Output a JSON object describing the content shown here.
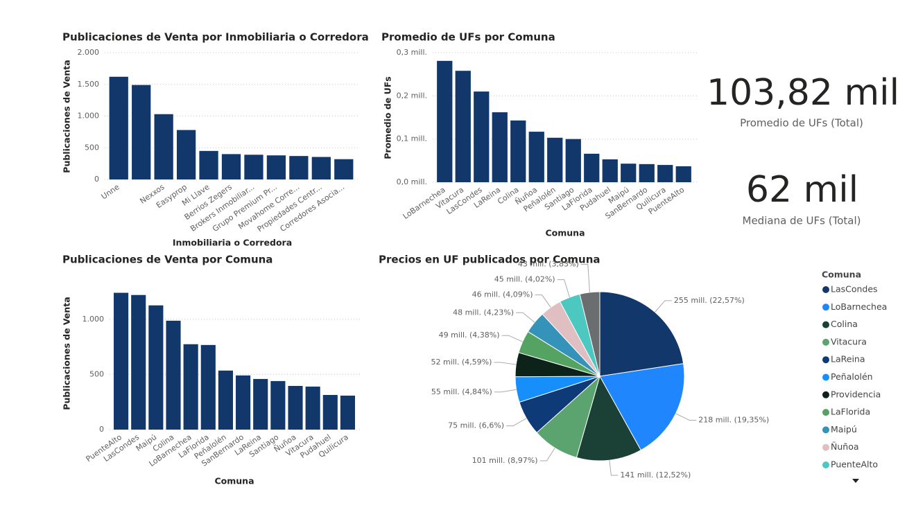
{
  "chart_data": [
    {
      "type": "bar",
      "title": "Publicaciones de Venta por Inmobiliaria o Corredora",
      "x_label": "Inmobiliaria o Corredora",
      "y_label": "Publicaciones de Venta",
      "categories": [
        "Unne",
        null,
        "Nexxos",
        "Easyprop",
        "Mi Llave",
        "Berrios Zegers",
        "Brokers Inmobiliar...",
        "Grupo Premium Pr...",
        "Movahome Corre...",
        "Propiedades Centr...",
        "Corredores Asocia..."
      ],
      "values": [
        1620,
        1490,
        1030,
        780,
        450,
        400,
        390,
        380,
        370,
        355,
        320
      ],
      "color": "#12386b",
      "ylim": [
        0,
        2000
      ],
      "yticks": [
        0,
        500,
        {
          "value": 1000,
          "label": "1.000"
        },
        {
          "value": 1500,
          "label": "1.500"
        },
        {
          "value": 2000,
          "label": "2.000"
        }
      ],
      "grid": true
    },
    {
      "type": "bar",
      "title": "Promedio de UFs por Comuna",
      "x_label": "Comuna",
      "y_label": "Promedio de UFs",
      "categories": [
        "LoBarnechea",
        "Vitacura",
        "LasCondes",
        "LaReina",
        "Colina",
        "Ñuñoa",
        "Peñalolén",
        "Santiago",
        "LaFlorida",
        "Pudahuel",
        "Maipú",
        "SanBernardo",
        "Quilicura",
        "PuenteAlto"
      ],
      "values": [
        0.281,
        0.258,
        0.21,
        0.162,
        0.143,
        0.117,
        0.103,
        0.1,
        0.066,
        0.053,
        0.043,
        0.042,
        0.04,
        0.037
      ],
      "color": "#12386b",
      "ylim": [
        0,
        0.3
      ],
      "yticks": [
        {
          "value": 0,
          "label": "0,0 mill."
        },
        {
          "value": 0.1,
          "label": "0,1 mill."
        },
        {
          "value": 0.2,
          "label": "0,2 mill."
        },
        {
          "value": 0.3,
          "label": "0,3 mill."
        }
      ],
      "grid": true
    },
    {
      "type": "bar",
      "title": "Publicaciones de Venta por Comuna",
      "x_label": "Comuna",
      "y_label": "Publicaciones de Venta",
      "categories": [
        "PuenteAlto",
        "LasCondes",
        "Maipú",
        "Colina",
        "LoBarnechea",
        "LaFlorida",
        "Peñalolén",
        "SanBernardo",
        "LaReina",
        "Santiago",
        "Ñuñoa",
        "Vitacura",
        "Pudahuel",
        "Quilicura"
      ],
      "values": [
        1240,
        1220,
        1126,
        987,
        774,
        767,
        535,
        491,
        459,
        440,
        396,
        390,
        314,
        308
      ],
      "color": "#12386b",
      "ylim": [
        0,
        1300
      ],
      "yticks": [
        0,
        500,
        {
          "value": 1000,
          "label": "1.000"
        }
      ],
      "grid": true
    },
    {
      "type": "pie",
      "title": "Precios en UF publicados por Comuna",
      "legend_title": "Comuna",
      "categories": [
        "LasCondes",
        "LoBarnechea",
        "Colina",
        "Vitacura",
        "LaReina",
        "Peñalolén",
        "Providencia",
        "LaFlorida",
        "Maipú",
        "Ñuñoa",
        "PuenteAlto",
        null
      ],
      "values": [
        255,
        218,
        141,
        101,
        75,
        55,
        52,
        49,
        48,
        46,
        45,
        43
      ],
      "value_labels": [
        "255 mill. (22,57%)",
        "218 mill. (19,35%)",
        "141 mill. (12,52%)",
        "101 mill. (8,97%)",
        "75 mill. (6,6%)",
        "55 mill. (4,84%)",
        "52 mill. (4,59%)",
        "49 mill. (4,38%)",
        "48 mill. (4,23%)",
        "46 mill. (4,09%)",
        "45 mill. (4,02%)",
        "43 mill. (3,83%)"
      ],
      "colors": [
        "#12386b",
        "#1f86fd",
        "#1b4136",
        "#5ba46f",
        "#0f3a78",
        "#168ffb",
        "#0d2219",
        "#55a363",
        "#3592b8",
        "#e0bfc3",
        "#4dc8c0",
        "#6b6e6e"
      ],
      "legend": "right"
    }
  ],
  "cards": [
    {
      "value": "103,82 mil",
      "label": "Promedio de UFs (Total)"
    },
    {
      "value": "62 mil",
      "label": "Mediana de UFs (Total)"
    }
  ]
}
